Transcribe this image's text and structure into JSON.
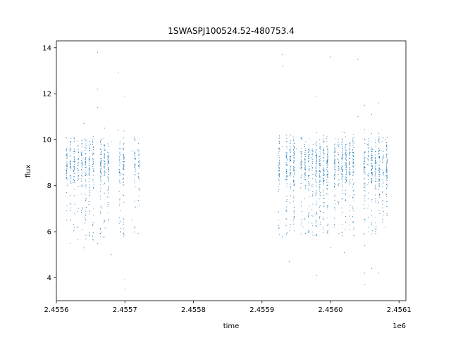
{
  "chart_data": {
    "type": "scatter",
    "title": "1SWASPJ100524.52-480753.4",
    "xlabel": "time",
    "ylabel": "flux",
    "x_offset_label": "1e6",
    "x_scale_factor": 1000000,
    "xlim": [
      2.4556,
      2.45611
    ],
    "ylim": [
      3.0,
      14.3
    ],
    "xticks": [
      2.4556,
      2.4557,
      2.4558,
      2.4559,
      2.456,
      2.4561
    ],
    "xtick_labels": [
      "2.4556",
      "2.4557",
      "2.4558",
      "2.4559",
      "2.4560",
      "2.4561"
    ],
    "yticks": [
      4,
      6,
      8,
      10,
      12,
      14
    ],
    "ytick_labels": [
      "4",
      "6",
      "8",
      "10",
      "12",
      "14"
    ],
    "grid": false,
    "marker_color": "#1f77b4",
    "series": [
      {
        "points": [
          [
            2.45562,
            5.5
          ],
          [
            2.45562,
            9.9
          ],
          [
            2.45563,
            6.2
          ],
          [
            2.45564,
            10.7
          ],
          [
            2.45564,
            5.3
          ],
          [
            2.45565,
            9.8
          ],
          [
            2.45566,
            13.8
          ],
          [
            2.45566,
            12.2
          ],
          [
            2.45566,
            11.4
          ],
          [
            2.45566,
            5.5
          ],
          [
            2.45567,
            10.5
          ],
          [
            2.45568,
            9.9
          ],
          [
            2.45568,
            5.0
          ],
          [
            2.45569,
            12.9
          ],
          [
            2.45569,
            10.4
          ],
          [
            2.4557,
            11.9
          ],
          [
            2.4557,
            3.9
          ],
          [
            2.4557,
            3.5
          ],
          [
            2.45571,
            6.5
          ],
          [
            2.45571,
            9.5
          ],
          [
            2.45593,
            13.7
          ],
          [
            2.45593,
            13.2
          ],
          [
            2.45593,
            9.7
          ],
          [
            2.45593,
            5.8
          ],
          [
            2.45594,
            4.7
          ],
          [
            2.45595,
            9.6
          ],
          [
            2.45596,
            6.2
          ],
          [
            2.45598,
            11.9
          ],
          [
            2.45598,
            10.3
          ],
          [
            2.45598,
            4.1
          ],
          [
            2.456,
            13.6
          ],
          [
            2.456,
            5.3
          ],
          [
            2.45602,
            10.3
          ],
          [
            2.45602,
            5.1
          ],
          [
            2.45604,
            13.5
          ],
          [
            2.45604,
            11.0
          ],
          [
            2.45605,
            11.5
          ],
          [
            2.45605,
            5.4
          ],
          [
            2.45605,
            3.7
          ],
          [
            2.45605,
            4.2
          ],
          [
            2.45606,
            11.1
          ],
          [
            2.45606,
            4.4
          ],
          [
            2.45607,
            11.6
          ],
          [
            2.45607,
            4.2
          ],
          [
            2.45608,
            10.0
          ],
          [
            2.45608,
            6.2
          ]
        ]
      }
    ],
    "dense_bands": [
      {
        "x_start": 2.455615,
        "x_end": 2.45572,
        "y_min": 5.6,
        "y_max": 10.1,
        "y_center": 8.9
      },
      {
        "x_start": 2.455925,
        "x_end": 2.456082,
        "y_min": 5.8,
        "y_max": 10.2,
        "y_center": 8.9
      }
    ]
  }
}
